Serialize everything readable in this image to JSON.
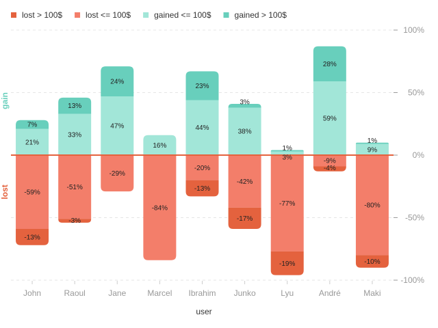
{
  "chart_data": {
    "type": "bar",
    "stacked": true,
    "diverging": true,
    "categories": [
      "John",
      "Raoul",
      "Jane",
      "Marcel",
      "Ibrahim",
      "Junko",
      "Lyu",
      "André",
      "Maki"
    ],
    "series": [
      {
        "name": "lost > 100$",
        "color": "#E4623E",
        "values": [
          -13,
          -3,
          0,
          0,
          -13,
          -17,
          -19,
          -4,
          -10
        ],
        "labels": [
          "-13%",
          "-3%",
          "",
          "",
          "-13%",
          "-17%",
          "-19%",
          "-4%",
          "-10%"
        ]
      },
      {
        "name": "lost <= 100$",
        "color": "#F37E6A",
        "values": [
          -59,
          -51,
          -29,
          -84,
          -20,
          -42,
          -77,
          -9,
          -80
        ],
        "labels": [
          "-59%",
          "-51%",
          "-29%",
          "-84%",
          "-20%",
          "-42%",
          "-77%",
          "-9%",
          "-80%"
        ]
      },
      {
        "name": "gained <= 100$",
        "color": "#A2E6D8",
        "values": [
          21,
          33,
          47,
          16,
          44,
          38,
          3,
          59,
          9
        ],
        "labels": [
          "21%",
          "33%",
          "47%",
          "16%",
          "44%",
          "38%",
          "3%",
          "59%",
          "9%"
        ]
      },
      {
        "name": "gained > 100$",
        "color": "#68CFBC",
        "values": [
          7,
          13,
          24,
          0,
          23,
          3,
          1,
          28,
          1
        ],
        "labels": [
          "7%",
          "13%",
          "24%",
          "",
          "23%",
          "3%",
          "1%",
          "28%",
          "1%"
        ]
      }
    ],
    "yticks": [
      -100,
      -50,
      0,
      50,
      100
    ],
    "ytick_labels": [
      "-100%",
      "-50%",
      "0%",
      "50%",
      "100%"
    ],
    "ylim": [
      -100,
      100
    ],
    "xlabel": "user",
    "gain_label": "gain",
    "lost_label": "lost",
    "gain_color": "#68CFBC",
    "lost_color": "#E4623E",
    "zero_line_color": "#E4623E",
    "grid": "dashed horizontal",
    "legend_position": "top-left"
  }
}
